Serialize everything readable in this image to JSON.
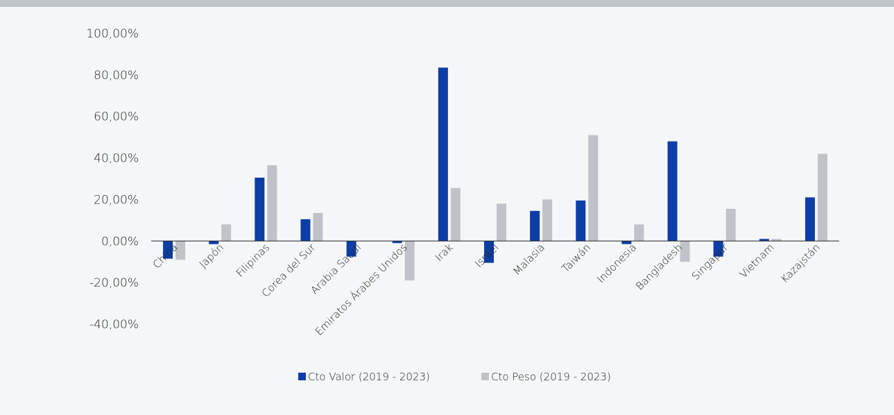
{
  "colors": {
    "series1": "#0d3ea6",
    "series2": "#bfc3c8",
    "background": "#f5f6f7",
    "top_bar": "#bfc4c9"
  },
  "chart_data": {
    "type": "bar",
    "categories": [
      "China",
      "Japón",
      "Filipinas",
      "Corea del Sur",
      "Arabia Saudí",
      "Emiratos Árabes Unidos",
      "Irak",
      "Israel",
      "Malasia",
      "Taiwán",
      "Indonesia",
      "Bangladesh",
      "Singapur",
      "Vietnam",
      "Kazajstán"
    ],
    "series": [
      {
        "name": "Cto Valor (2019 - 2023)",
        "values": [
          -8.5,
          -1.5,
          30.5,
          10.5,
          -7.5,
          -1.0,
          83.5,
          -10.5,
          14.5,
          19.5,
          -1.5,
          48.0,
          -7.5,
          1.0,
          21.0
        ]
      },
      {
        "name": "Cto Peso (2019 - 2023)",
        "values": [
          -9.0,
          8.0,
          36.5,
          13.5,
          0.0,
          -19.0,
          25.5,
          18.0,
          20.0,
          51.0,
          8.0,
          -10.0,
          15.5,
          1.0,
          42.0
        ]
      }
    ],
    "yticks": [
      "100,00%",
      "80,00%",
      "60,00%",
      "40,00%",
      "20,00%",
      "0,00%",
      "-20,00%",
      "-40,00%"
    ],
    "ylim": [
      -40,
      100
    ],
    "legend_position": "bottom",
    "grid": false
  }
}
